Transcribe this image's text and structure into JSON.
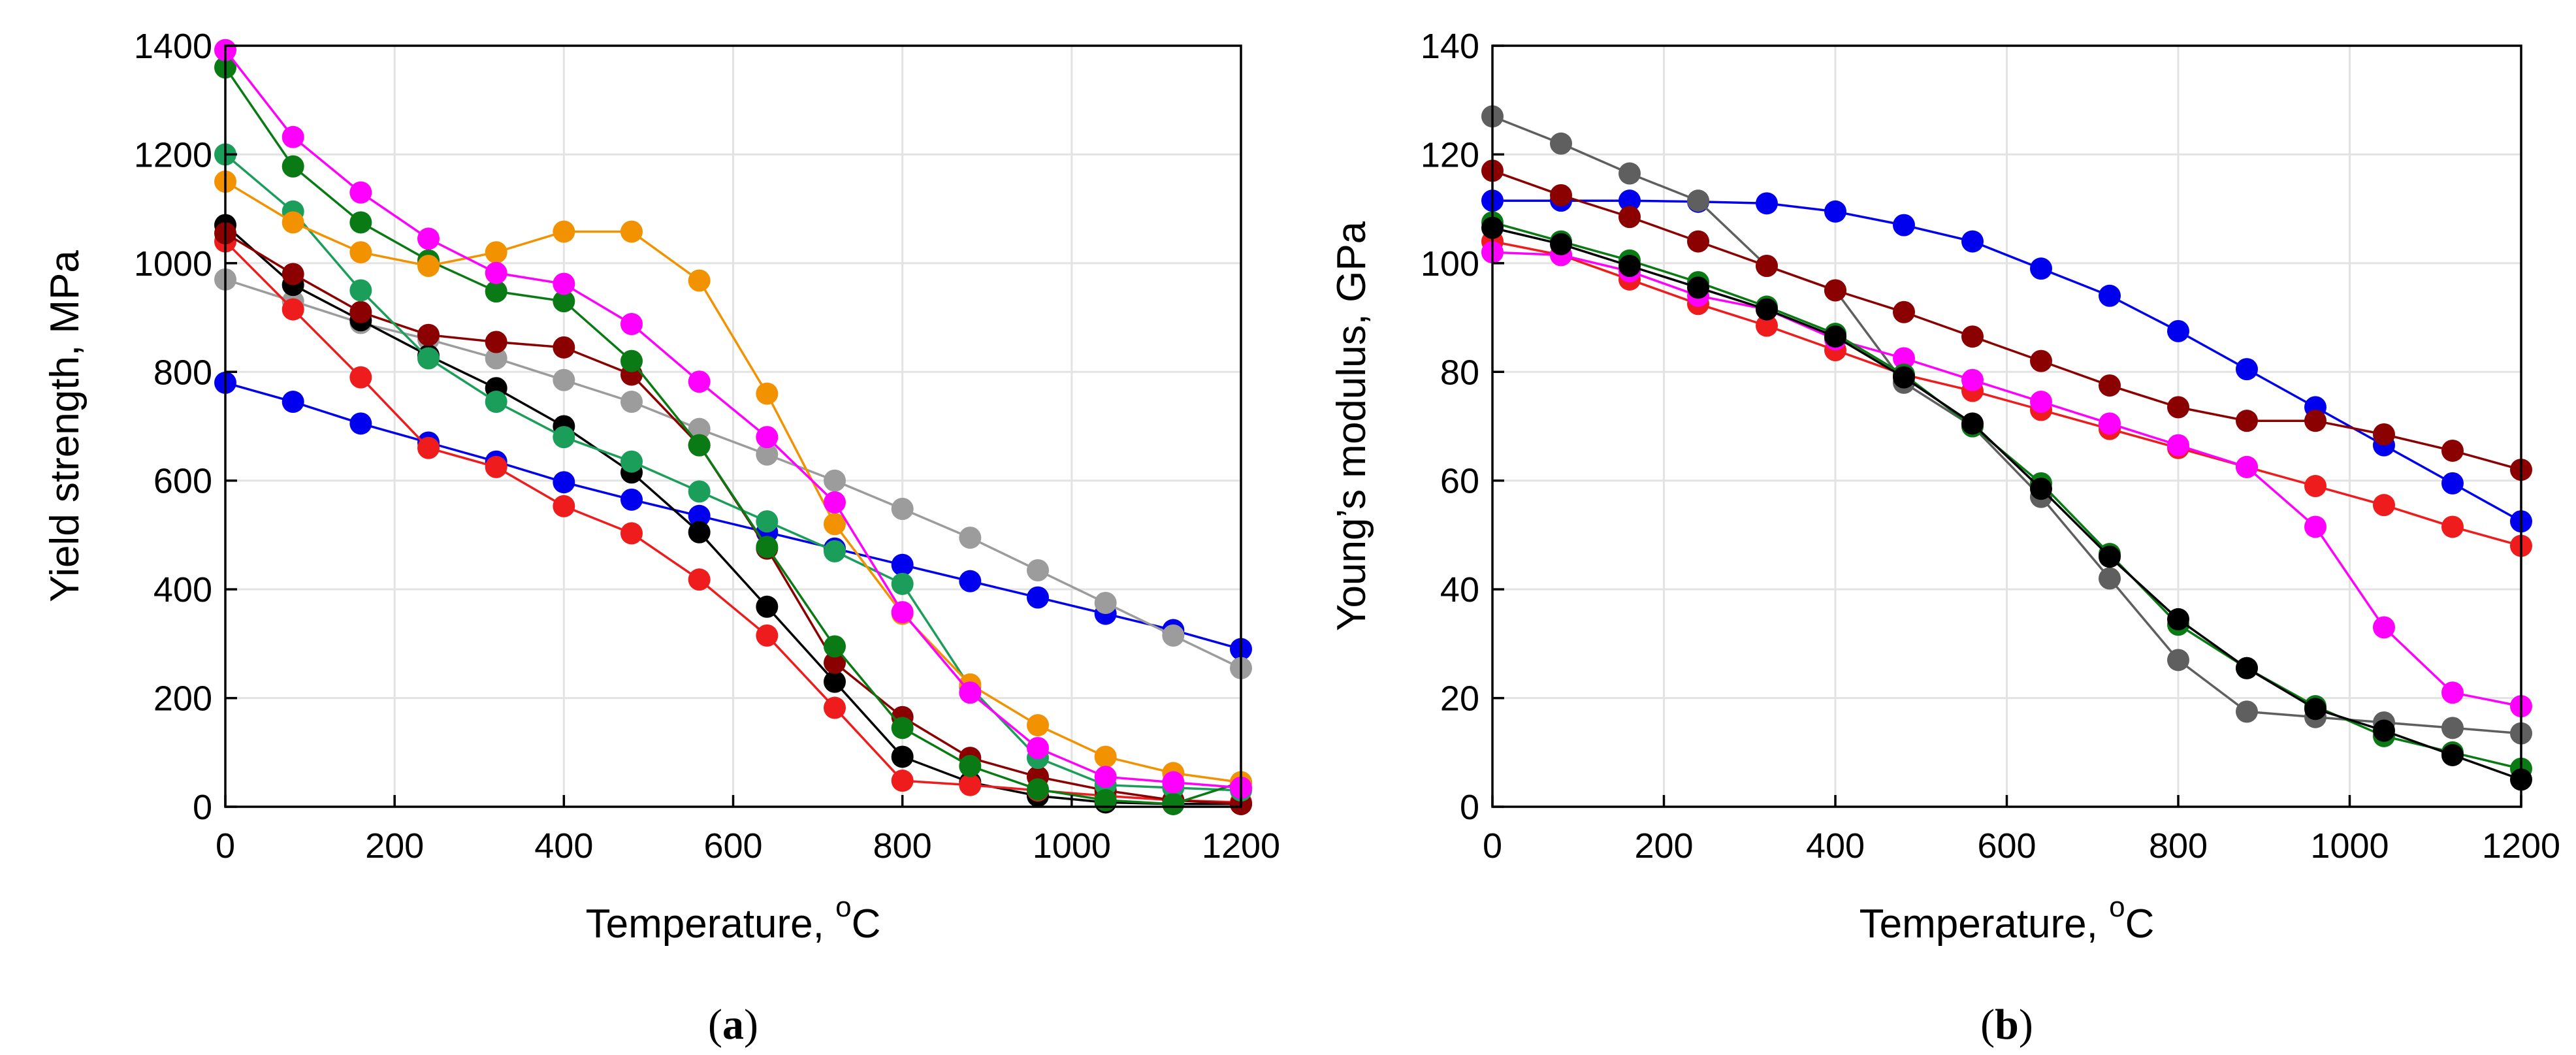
{
  "chart_data": [
    {
      "type": "line",
      "panel_label_open": "(",
      "panel_label_letter": "a",
      "panel_label_close": ")",
      "xlabel": "Temperature, ",
      "xlabel_unit_sup": "o",
      "xlabel_unit": "C",
      "ylabel": "Yield strength, MPa",
      "xlim": [
        0,
        1200
      ],
      "ylim": [
        0,
        1400
      ],
      "xticks": [
        "0",
        "200",
        "400",
        "600",
        "800",
        "1000",
        "1200"
      ],
      "yticks": [
        "0",
        "200",
        "400",
        "600",
        "800",
        "1000",
        "1200",
        "1400"
      ],
      "grid": true,
      "legend": "none",
      "series": [
        {
          "name": "blue",
          "color": "#0000ee",
          "x": [
            0,
            80,
            160,
            240,
            320,
            400,
            480,
            560,
            640,
            720,
            800,
            880,
            960,
            1040,
            1120,
            1200
          ],
          "y": [
            780,
            745,
            705,
            670,
            635,
            597,
            565,
            535,
            505,
            475,
            445,
            415,
            385,
            355,
            325,
            290
          ]
        },
        {
          "name": "gray",
          "color": "#9c9c9c",
          "x": [
            0,
            80,
            160,
            240,
            320,
            400,
            480,
            560,
            640,
            720,
            800,
            880,
            960,
            1040,
            1120,
            1200
          ],
          "y": [
            970,
            930,
            890,
            860,
            825,
            785,
            745,
            695,
            648,
            600,
            548,
            495,
            435,
            375,
            315,
            255
          ]
        },
        {
          "name": "black",
          "color": "#000000",
          "x": [
            0,
            80,
            160,
            240,
            320,
            400,
            480,
            560,
            640,
            720,
            800,
            880,
            960,
            1040,
            1120,
            1200
          ],
          "y": [
            1070,
            960,
            895,
            830,
            770,
            700,
            615,
            505,
            368,
            230,
            92,
            45,
            20,
            8,
            5,
            5
          ]
        },
        {
          "name": "red",
          "color": "#ee1c1c",
          "x": [
            0,
            80,
            160,
            240,
            320,
            400,
            480,
            560,
            640,
            720,
            800,
            880,
            960,
            1040,
            1120,
            1200
          ],
          "y": [
            1040,
            915,
            790,
            660,
            625,
            553,
            503,
            418,
            315,
            182,
            48,
            40,
            30,
            20,
            12,
            8
          ]
        },
        {
          "name": "dark-red",
          "color": "#8b0000",
          "x": [
            0,
            80,
            160,
            240,
            320,
            400,
            480,
            560,
            640,
            720,
            800,
            880,
            960,
            1040,
            1120,
            1200
          ],
          "y": [
            1055,
            980,
            910,
            868,
            855,
            845,
            795,
            665,
            475,
            265,
            165,
            90,
            55,
            30,
            12,
            5
          ]
        },
        {
          "name": "sea-green",
          "color": "#1a9e5a",
          "x": [
            0,
            80,
            160,
            240,
            320,
            400,
            480,
            560,
            640,
            720,
            800,
            880,
            960,
            1040,
            1120,
            1200
          ],
          "y": [
            1200,
            1095,
            950,
            825,
            745,
            680,
            635,
            580,
            525,
            470,
            410,
            220,
            90,
            40,
            35,
            30
          ]
        },
        {
          "name": "dark-green",
          "color": "#0a7a14",
          "x": [
            0,
            80,
            160,
            240,
            320,
            400,
            480,
            560,
            640,
            720,
            800,
            880,
            960,
            1040,
            1120,
            1200
          ],
          "y": [
            1360,
            1178,
            1075,
            1005,
            948,
            930,
            820,
            665,
            478,
            295,
            145,
            75,
            32,
            12,
            5,
            45
          ]
        },
        {
          "name": "orange",
          "color": "#f39200",
          "x": [
            0,
            80,
            160,
            240,
            320,
            400,
            480,
            560,
            640,
            720,
            800,
            880,
            960,
            1040,
            1120,
            1200
          ],
          "y": [
            1150,
            1075,
            1020,
            995,
            1020,
            1058,
            1058,
            968,
            760,
            520,
            355,
            225,
            150,
            92,
            62,
            45
          ]
        },
        {
          "name": "magenta",
          "color": "#ff00ff",
          "x": [
            0,
            80,
            160,
            240,
            320,
            400,
            480,
            560,
            640,
            720,
            800,
            880,
            960,
            1040,
            1120,
            1200
          ],
          "y": [
            1392,
            1232,
            1130,
            1045,
            982,
            962,
            888,
            782,
            680,
            560,
            358,
            210,
            108,
            55,
            45,
            35
          ]
        }
      ]
    },
    {
      "type": "line",
      "panel_label_open": "(",
      "panel_label_letter": "b",
      "panel_label_close": ")",
      "xlabel": "Temperature, ",
      "xlabel_unit_sup": "o",
      "xlabel_unit": "C",
      "ylabel": "Young’s modulus, GPa",
      "xlim": [
        0,
        1200
      ],
      "ylim": [
        0,
        140
      ],
      "xticks": [
        "0",
        "200",
        "400",
        "600",
        "800",
        "1000",
        "1200"
      ],
      "yticks": [
        "0",
        "20",
        "40",
        "60",
        "80",
        "100",
        "120",
        "140"
      ],
      "grid": true,
      "legend": "none",
      "series": [
        {
          "name": "blue",
          "color": "#0000ee",
          "x": [
            0,
            80,
            160,
            240,
            320,
            400,
            480,
            560,
            640,
            720,
            800,
            880,
            960,
            1040,
            1120,
            1200
          ],
          "y": [
            111.5,
            111.5,
            111.5,
            111.3,
            111,
            109.5,
            107,
            104,
            99,
            94,
            87.5,
            80.5,
            73.5,
            66.5,
            59.5,
            52.5
          ]
        },
        {
          "name": "gray",
          "color": "#5f5f5f",
          "x": [
            0,
            80,
            160,
            240,
            320,
            400,
            480,
            560,
            640,
            720,
            800,
            880,
            960,
            1040,
            1120,
            1200
          ],
          "y": [
            127,
            122,
            116.5,
            111.5,
            99.5,
            95,
            78,
            70,
            57,
            42,
            27,
            17.5,
            16.5,
            15.5,
            14.5,
            13.5
          ]
        },
        {
          "name": "dark-red",
          "color": "#8b0000",
          "x": [
            0,
            80,
            160,
            240,
            320,
            400,
            480,
            560,
            640,
            720,
            800,
            880,
            960,
            1040,
            1120,
            1200
          ],
          "y": [
            117,
            112.5,
            108.5,
            104,
            99.5,
            95,
            91,
            86.5,
            82,
            77.5,
            73.5,
            71,
            71,
            68.5,
            65.5,
            62
          ]
        },
        {
          "name": "red",
          "color": "#ee1c1c",
          "x": [
            0,
            80,
            160,
            240,
            320,
            400,
            480,
            560,
            640,
            720,
            800,
            880,
            960,
            1040,
            1120,
            1200
          ],
          "y": [
            104,
            101.5,
            97,
            92.5,
            88.5,
            84,
            79.5,
            76.5,
            73,
            69.5,
            66,
            62.5,
            59,
            55.5,
            51.5,
            48
          ]
        },
        {
          "name": "magenta",
          "color": "#ff00ff",
          "x": [
            0,
            80,
            160,
            240,
            320,
            400,
            480,
            560,
            640,
            720,
            800,
            880,
            960,
            1040,
            1120,
            1200
          ],
          "y": [
            102,
            101.5,
            98.5,
            94,
            91.5,
            86,
            82.5,
            78.5,
            74.5,
            70.5,
            66.5,
            62.5,
            51.5,
            33,
            21,
            18.5
          ]
        },
        {
          "name": "dark-green",
          "color": "#0a7a14",
          "x": [
            0,
            80,
            160,
            240,
            320,
            400,
            480,
            560,
            640,
            720,
            800,
            880,
            960,
            1040,
            1120,
            1200
          ],
          "y": [
            107.5,
            104,
            100.5,
            96.5,
            92,
            87,
            79.5,
            70,
            59.5,
            46.5,
            33.5,
            25.5,
            18.5,
            13,
            10,
            7
          ]
        },
        {
          "name": "black",
          "color": "#000000",
          "x": [
            0,
            80,
            160,
            240,
            320,
            400,
            480,
            560,
            640,
            720,
            800,
            880,
            960,
            1040,
            1120,
            1200
          ],
          "y": [
            106.5,
            103.5,
            99.5,
            95.5,
            91.5,
            86.5,
            79,
            70.5,
            58.5,
            46,
            34.5,
            25.5,
            18,
            14,
            9.5,
            5
          ]
        }
      ]
    }
  ]
}
